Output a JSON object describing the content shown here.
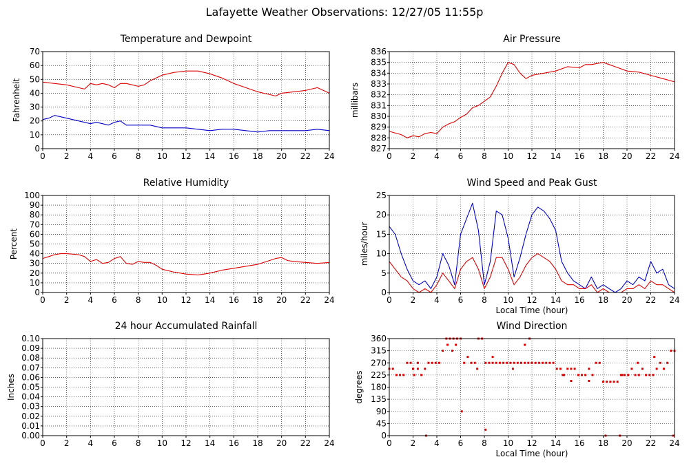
{
  "page": {
    "title": "Lafayette Weather Observations: 12/27/05 11:55p"
  },
  "colors": {
    "red": "#dd0000",
    "blue": "#0000cc",
    "grid": "#000000",
    "frame": "#000000"
  },
  "chart_data": [
    {
      "id": "temperature",
      "type": "line",
      "title": "Temperature and Dewpoint",
      "xlabel": "",
      "ylabel": "Fahrenheit",
      "xlim": [
        0,
        24
      ],
      "ylim": [
        0,
        70
      ],
      "xticks": [
        "0",
        "2",
        "4",
        "6",
        "8",
        "10",
        "12",
        "14",
        "16",
        "18",
        "20",
        "22",
        "24"
      ],
      "yticks": [
        "0",
        "10",
        "20",
        "30",
        "40",
        "50",
        "60",
        "70"
      ],
      "grid": true,
      "series": [
        {
          "color": "#dd0000",
          "x": [
            0,
            1,
            2,
            3,
            3.5,
            4,
            4.5,
            5,
            5.5,
            6,
            6.5,
            7,
            7.5,
            8,
            8.5,
            9,
            9.5,
            10,
            11,
            12,
            13,
            14,
            15,
            16,
            17,
            18,
            19,
            19.5,
            20,
            21,
            22,
            23,
            24
          ],
          "y": [
            48,
            47,
            46,
            44,
            43,
            47,
            46,
            47,
            46,
            44,
            47,
            47,
            46,
            45,
            46,
            49,
            51,
            53,
            55,
            56,
            56,
            54,
            51,
            47,
            44,
            41,
            39,
            38,
            40,
            41,
            42,
            44,
            40
          ]
        },
        {
          "color": "#0000cc",
          "x": [
            0,
            0.5,
            1,
            1.5,
            2,
            3,
            3.5,
            4,
            4.5,
            5,
            5.5,
            6,
            6.5,
            7,
            8,
            9,
            10,
            11,
            12,
            13,
            14,
            15,
            16,
            17,
            18,
            19,
            20,
            21,
            22,
            23,
            24
          ],
          "y": [
            21,
            22,
            24,
            23,
            22,
            20,
            19,
            18,
            19,
            18,
            17,
            19,
            20,
            17,
            17,
            17,
            15,
            15,
            15,
            14,
            13,
            14,
            14,
            13,
            12,
            13,
            13,
            13,
            13,
            14,
            13
          ]
        }
      ]
    },
    {
      "id": "pressure",
      "type": "line",
      "title": "Air Pressure",
      "xlabel": "",
      "ylabel": "millibars",
      "xlim": [
        0,
        24
      ],
      "ylim": [
        827,
        836
      ],
      "xticks": [
        "0",
        "2",
        "4",
        "6",
        "8",
        "10",
        "12",
        "14",
        "16",
        "18",
        "20",
        "22",
        "24"
      ],
      "yticks": [
        "827",
        "828",
        "829",
        "830",
        "831",
        "832",
        "833",
        "834",
        "835",
        "836"
      ],
      "grid": true,
      "series": [
        {
          "color": "#dd0000",
          "x": [
            0,
            1,
            1.5,
            2,
            2.5,
            3,
            3.5,
            4,
            4.5,
            5,
            5.5,
            6,
            6.5,
            7,
            7.5,
            8,
            8.5,
            9,
            9.5,
            10,
            10.5,
            11,
            11.5,
            12,
            13,
            14,
            15,
            16,
            16.5,
            17,
            18,
            19,
            20,
            21,
            22,
            23,
            24
          ],
          "y": [
            828.6,
            828.3,
            828.0,
            828.2,
            828.1,
            828.4,
            828.5,
            828.4,
            829.0,
            829.3,
            829.5,
            829.9,
            830.2,
            830.8,
            831.0,
            831.4,
            831.8,
            832.8,
            834.0,
            835.0,
            834.8,
            834.0,
            833.5,
            833.8,
            834.0,
            834.2,
            834.6,
            834.5,
            834.8,
            834.8,
            835.0,
            834.6,
            834.2,
            834.1,
            833.8,
            833.5,
            833.2
          ]
        }
      ]
    },
    {
      "id": "humidity",
      "type": "line",
      "title": "Relative Humidity",
      "xlabel": "",
      "ylabel": "Percent",
      "xlim": [
        0,
        24
      ],
      "ylim": [
        0,
        100
      ],
      "xticks": [
        "0",
        "2",
        "4",
        "6",
        "8",
        "10",
        "12",
        "14",
        "16",
        "18",
        "20",
        "22",
        "24"
      ],
      "yticks": [
        "0",
        "10",
        "20",
        "30",
        "40",
        "50",
        "60",
        "70",
        "80",
        "90",
        "100"
      ],
      "grid": true,
      "series": [
        {
          "color": "#dd0000",
          "x": [
            0,
            0.5,
            1,
            1.5,
            2,
            3,
            3.5,
            4,
            4.5,
            5,
            5.5,
            6,
            6.5,
            7,
            7.5,
            8,
            8.5,
            9,
            9.5,
            10,
            11,
            12,
            13,
            14,
            15,
            16,
            17,
            18,
            19,
            19.5,
            20,
            20.5,
            21,
            22,
            23,
            24
          ],
          "y": [
            35,
            37,
            39,
            40,
            40,
            39,
            37,
            32,
            34,
            30,
            31,
            35,
            37,
            30,
            29,
            32,
            31,
            31,
            28,
            24,
            21,
            19,
            18,
            20,
            23,
            25,
            27,
            29,
            33,
            35,
            36,
            33,
            32,
            31,
            30,
            31
          ]
        }
      ]
    },
    {
      "id": "wind_speed",
      "type": "line",
      "title": "Wind Speed and Peak Gust",
      "xlabel": "Local Time (hour)",
      "ylabel": "miles/hour",
      "xlim": [
        0,
        24
      ],
      "ylim": [
        0,
        25
      ],
      "xticks": [
        "0",
        "2",
        "4",
        "6",
        "8",
        "10",
        "12",
        "14",
        "16",
        "18",
        "20",
        "22",
        "24"
      ],
      "yticks": [
        "0",
        "5",
        "10",
        "15",
        "20",
        "25"
      ],
      "grid": true,
      "series": [
        {
          "color": "#0000cc",
          "x": [
            0,
            0.5,
            1,
            1.5,
            2,
            2.5,
            3,
            3.5,
            4,
            4.5,
            5,
            5.5,
            6,
            6.5,
            7,
            7.5,
            8,
            8.5,
            9,
            9.5,
            10,
            10.5,
            11,
            11.5,
            12,
            12.5,
            13,
            13.5,
            14,
            14.5,
            15,
            15.5,
            16,
            16.5,
            17,
            17.5,
            18,
            18.5,
            19,
            19.5,
            20,
            20.5,
            21,
            21.5,
            22,
            22.5,
            23,
            23.5,
            24
          ],
          "y": [
            17,
            15,
            10,
            6,
            3,
            2,
            3,
            1,
            4,
            10,
            7,
            2,
            15,
            19,
            23,
            16,
            2,
            8,
            21,
            20,
            14,
            4,
            9,
            15,
            20,
            22,
            21,
            19,
            16,
            8,
            5,
            3,
            2,
            1,
            4,
            1,
            2,
            1,
            0,
            1,
            3,
            2,
            4,
            3,
            8,
            5,
            6,
            2,
            1
          ]
        },
        {
          "color": "#dd0000",
          "x": [
            0,
            0.5,
            1,
            1.5,
            2,
            2.5,
            3,
            3.5,
            4,
            4.5,
            5,
            5.5,
            6,
            6.5,
            7,
            7.5,
            8,
            8.5,
            9,
            9.5,
            10,
            10.5,
            11,
            11.5,
            12,
            12.5,
            13,
            13.5,
            14,
            14.5,
            15,
            15.5,
            16,
            16.5,
            17,
            17.5,
            18,
            18.5,
            19,
            19.5,
            20,
            20.5,
            21,
            21.5,
            22,
            22.5,
            23,
            23.5,
            24
          ],
          "y": [
            8,
            6,
            4,
            3,
            1,
            0,
            1,
            0,
            2,
            5,
            3,
            1,
            6,
            8,
            9,
            6,
            1,
            4,
            9,
            9,
            6,
            2,
            4,
            7,
            9,
            10,
            9,
            8,
            6,
            3,
            2,
            2,
            1,
            1,
            2,
            0,
            1,
            0,
            0,
            0,
            1,
            1,
            2,
            1,
            3,
            2,
            2,
            1,
            0
          ]
        }
      ]
    },
    {
      "id": "rainfall",
      "type": "line",
      "title": "24 hour Accumulated Rainfall",
      "xlabel": "",
      "ylabel": "Inches",
      "xlim": [
        0,
        24
      ],
      "ylim": [
        0,
        0.1
      ],
      "xticks": [
        "0",
        "2",
        "4",
        "6",
        "8",
        "10",
        "12",
        "14",
        "16",
        "18",
        "20",
        "22",
        "24"
      ],
      "yticks": [
        "0.00",
        "0.01",
        "0.02",
        "0.03",
        "0.04",
        "0.05",
        "0.06",
        "0.07",
        "0.08",
        "0.09",
        "0.10"
      ],
      "grid": true,
      "series": [
        {
          "color": "#dd0000",
          "x": [
            0,
            24
          ],
          "y": [
            0,
            0
          ]
        }
      ]
    },
    {
      "id": "wind_direction",
      "type": "scatter",
      "title": "Wind Direction",
      "xlabel": "Local Time (hour)",
      "ylabel": "degrees",
      "xlim": [
        0,
        24
      ],
      "ylim": [
        0,
        360
      ],
      "xticks": [
        "0",
        "2",
        "4",
        "6",
        "8",
        "10",
        "12",
        "14",
        "16",
        "18",
        "20",
        "22",
        "24"
      ],
      "yticks": [
        "0",
        "45",
        "90",
        "135",
        "180",
        "225",
        "270",
        "315",
        "360"
      ],
      "grid": true,
      "series": [
        {
          "color": "#dd0000",
          "x": [
            0,
            0.3,
            0.6,
            0.9,
            1.2,
            1.5,
            1.8,
            2.1,
            2.4,
            2.7,
            3,
            3.3,
            3.6,
            3.9,
            4.2,
            4.5,
            4.8,
            5.1,
            5.4,
            5.7,
            6,
            6.3,
            6.6,
            6.9,
            7.2,
            7.5,
            7.8,
            8.1,
            8.4,
            8.7,
            9,
            9.3,
            9.6,
            9.9,
            10.2,
            10.5,
            10.8,
            11.1,
            11.4,
            11.7,
            12,
            12.3,
            12.6,
            12.9,
            13.2,
            13.5,
            13.8,
            14.1,
            14.4,
            14.7,
            15,
            15.3,
            15.6,
            15.9,
            16.2,
            16.5,
            16.8,
            17.1,
            17.4,
            17.7,
            18,
            18.3,
            18.6,
            18.9,
            19.2,
            19.5,
            19.8,
            20.1,
            20.4,
            20.7,
            21,
            21.3,
            21.6,
            21.9,
            22.2,
            22.5,
            22.8,
            23.1,
            23.4,
            23.7,
            24,
            3.1,
            6.1,
            8.1,
            18.2,
            19.4,
            23.9,
            4.9,
            5.3,
            7.4,
            8.7,
            11.4,
            11.8,
            10.4,
            2.0,
            2.4,
            5.6,
            14.6,
            15.3,
            16.8,
            19.6,
            20.9,
            22.3
          ],
          "y": [
            248,
            248,
            225,
            225,
            225,
            270,
            270,
            225,
            270,
            225,
            248,
            270,
            270,
            270,
            270,
            315,
            360,
            360,
            360,
            360,
            360,
            270,
            292,
            270,
            270,
            360,
            360,
            270,
            270,
            270,
            270,
            270,
            270,
            270,
            270,
            270,
            270,
            270,
            270,
            270,
            270,
            270,
            270,
            270,
            270,
            270,
            270,
            248,
            248,
            225,
            248,
            248,
            248,
            225,
            225,
            225,
            248,
            225,
            270,
            270,
            200,
            200,
            200,
            200,
            200,
            225,
            225,
            225,
            248,
            225,
            225,
            248,
            225,
            225,
            225,
            248,
            270,
            248,
            270,
            315,
            315,
            0,
            90,
            22,
            0,
            0,
            0,
            337,
            315,
            248,
            292,
            337,
            360,
            248,
            248,
            248,
            337,
            225,
            203,
            203,
            225,
            270,
            292
          ]
        }
      ]
    }
  ]
}
